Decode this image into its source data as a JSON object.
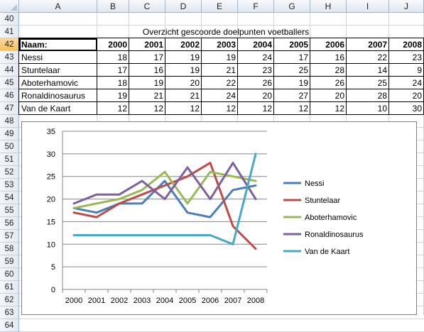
{
  "columns": [
    "A",
    "B",
    "C",
    "D",
    "E",
    "F",
    "G",
    "H",
    "I",
    "J"
  ],
  "rows": [
    "40",
    "41",
    "42",
    "43",
    "44",
    "45",
    "46",
    "47",
    "48",
    "49",
    "50",
    "51",
    "52",
    "53",
    "54",
    "55",
    "56",
    "57",
    "58",
    "59",
    "60",
    "61",
    "62",
    "63",
    "64"
  ],
  "active_row": "42",
  "table": {
    "title": "Overzicht gescoorde doelpunten voetballers",
    "header_label": "Naam:",
    "years": [
      "2000",
      "2001",
      "2002",
      "2003",
      "2004",
      "2005",
      "2006",
      "2007",
      "2008"
    ],
    "players": [
      {
        "name": "Nessi",
        "values": [
          "18",
          "17",
          "19",
          "19",
          "24",
          "17",
          "16",
          "22",
          "23"
        ]
      },
      {
        "name": "Stuntelaar",
        "values": [
          "17",
          "16",
          "19",
          "21",
          "23",
          "25",
          "28",
          "14",
          "9"
        ]
      },
      {
        "name": "Aboterhamovic",
        "values": [
          "18",
          "19",
          "20",
          "22",
          "26",
          "19",
          "26",
          "25",
          "24"
        ]
      },
      {
        "name": "Ronaldinosaurus",
        "values": [
          "19",
          "21",
          "21",
          "24",
          "20",
          "27",
          "20",
          "28",
          "20"
        ]
      },
      {
        "name": "Van de Kaart",
        "values": [
          "12",
          "12",
          "12",
          "12",
          "12",
          "12",
          "12",
          "10",
          "30"
        ]
      }
    ]
  },
  "chart_data": {
    "type": "line",
    "x": [
      "2000",
      "2001",
      "2002",
      "2003",
      "2004",
      "2005",
      "2006",
      "2007",
      "2008"
    ],
    "ylim": [
      0,
      35
    ],
    "yticks": [
      "0",
      "5",
      "10",
      "15",
      "20",
      "25",
      "30",
      "35"
    ],
    "grid": true,
    "legend_position": "right",
    "series": [
      {
        "name": "Nessi",
        "color": "#4a7ebb",
        "values": [
          18,
          17,
          19,
          19,
          24,
          17,
          16,
          22,
          23
        ]
      },
      {
        "name": "Stuntelaar",
        "color": "#be4b48",
        "values": [
          17,
          16,
          19,
          21,
          23,
          25,
          28,
          14,
          9
        ]
      },
      {
        "name": "Aboterhamovic",
        "color": "#98b954",
        "values": [
          18,
          19,
          20,
          22,
          26,
          19,
          26,
          25,
          24
        ]
      },
      {
        "name": "Ronaldinosaurus",
        "color": "#7d60a0",
        "values": [
          19,
          21,
          21,
          24,
          20,
          27,
          20,
          28,
          20
        ]
      },
      {
        "name": "Van de Kaart",
        "color": "#46aac5",
        "values": [
          12,
          12,
          12,
          12,
          12,
          12,
          12,
          10,
          30
        ]
      }
    ]
  }
}
